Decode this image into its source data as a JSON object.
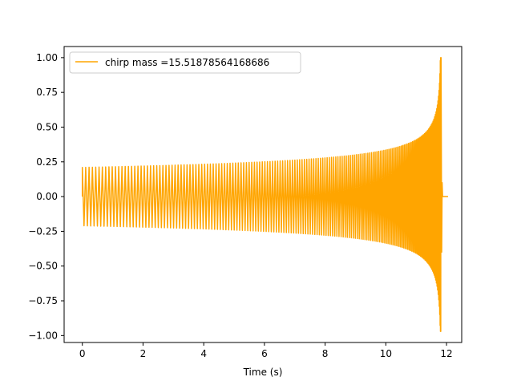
{
  "chart_data": {
    "type": "line",
    "title": "",
    "xlabel": "Time (s)",
    "ylabel": "",
    "xlim": [
      -0.6,
      12.5
    ],
    "ylim": [
      -1.05,
      1.08
    ],
    "xticks": [
      0,
      2,
      4,
      6,
      8,
      10,
      12
    ],
    "xtick_labels": [
      "0",
      "2",
      "4",
      "6",
      "8",
      "10",
      "12"
    ],
    "yticks": [
      -1.0,
      -0.75,
      -0.5,
      -0.25,
      0.0,
      0.25,
      0.5,
      0.75,
      1.0
    ],
    "ytick_labels": [
      "−1.00",
      "−0.75",
      "−0.50",
      "−0.25",
      "0.00",
      "0.25",
      "0.50",
      "0.75",
      "1.00"
    ],
    "grid": false,
    "legend": {
      "position": "upper-left"
    },
    "series": [
      {
        "name": "chirp mass =15.51878564168686",
        "color": "#ffa500",
        "signal": {
          "kind": "chirp",
          "t_start": 0.0,
          "t_merge": 11.82,
          "t_end": 12.05,
          "amplitude_start": 0.21,
          "amplitude_peak": 1.0,
          "amplitude_min_peak": -0.97
        }
      }
    ]
  }
}
